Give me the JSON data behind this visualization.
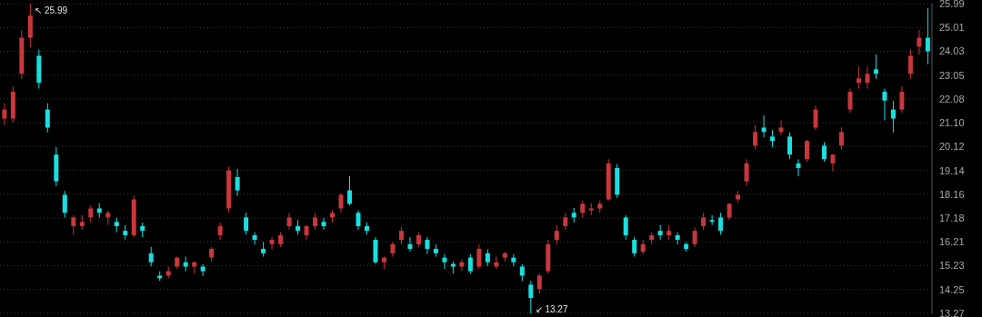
{
  "chart_data": {
    "type": "candlestick",
    "categories": [
      null,
      null,
      null,
      null,
      null,
      null,
      null,
      null,
      null,
      null,
      null,
      null,
      null,
      null,
      null,
      null,
      null,
      null,
      null,
      null,
      null,
      null,
      null,
      null,
      null,
      null,
      null,
      null,
      null,
      null,
      null,
      null,
      null,
      null,
      null,
      null,
      null,
      null,
      null,
      null,
      null,
      null,
      null,
      null,
      null,
      null,
      null,
      null,
      null,
      null,
      null,
      null,
      null,
      null,
      null,
      null,
      null,
      null,
      null,
      null,
      null,
      null,
      null,
      null,
      null,
      null,
      null,
      null,
      null,
      null,
      null,
      null,
      null,
      null,
      null,
      null,
      null,
      null,
      null,
      null,
      null,
      null,
      null,
      null,
      null,
      null,
      null,
      null,
      null,
      null,
      null,
      null,
      null,
      null,
      null,
      null,
      null,
      null,
      null,
      null,
      null,
      null,
      null,
      null,
      null,
      null,
      null,
      null
    ],
    "ohlc": [
      [
        21.27,
        21.9,
        21.0,
        21.64
      ],
      [
        21.27,
        22.6,
        21.1,
        22.37
      ],
      [
        23.11,
        24.9,
        22.9,
        24.59
      ],
      [
        24.59,
        25.99,
        24.2,
        25.5
      ],
      [
        23.85,
        24.1,
        22.5,
        22.74
      ],
      [
        21.64,
        21.9,
        20.7,
        20.9
      ],
      [
        19.79,
        20.1,
        18.5,
        18.69
      ],
      [
        18.14,
        18.3,
        17.2,
        17.4
      ],
      [
        16.85,
        17.3,
        16.5,
        17.21
      ],
      [
        16.85,
        17.3,
        16.7,
        17.03
      ],
      [
        17.21,
        17.7,
        17.0,
        17.58
      ],
      [
        17.58,
        17.8,
        17.2,
        17.4
      ],
      [
        17.21,
        17.5,
        16.9,
        17.4
      ],
      [
        17.03,
        17.2,
        16.6,
        16.85
      ],
      [
        16.66,
        16.9,
        16.3,
        16.48
      ],
      [
        16.48,
        18.1,
        16.4,
        17.95
      ],
      [
        16.85,
        17.0,
        16.4,
        16.66
      ],
      [
        15.74,
        16.0,
        15.2,
        15.37
      ],
      [
        14.82,
        15.0,
        14.6,
        14.71
      ],
      [
        14.82,
        15.2,
        14.7,
        15.0
      ],
      [
        15.19,
        15.6,
        15.1,
        15.56
      ],
      [
        15.37,
        15.6,
        15.0,
        15.19
      ],
      [
        15.19,
        15.4,
        14.9,
        15.37
      ],
      [
        15.19,
        15.3,
        14.8,
        15.0
      ],
      [
        15.56,
        16.0,
        15.4,
        15.92
      ],
      [
        16.48,
        17.0,
        16.3,
        16.85
      ],
      [
        17.58,
        19.3,
        17.4,
        19.14
      ],
      [
        18.87,
        19.2,
        18.1,
        18.32
      ],
      [
        17.21,
        17.4,
        16.5,
        16.66
      ],
      [
        16.48,
        16.6,
        16.1,
        16.29
      ],
      [
        15.92,
        16.2,
        15.6,
        15.74
      ],
      [
        16.11,
        16.4,
        15.9,
        16.29
      ],
      [
        16.11,
        16.6,
        16.0,
        16.48
      ],
      [
        16.85,
        17.4,
        16.7,
        17.21
      ],
      [
        16.85,
        17.1,
        16.5,
        16.66
      ],
      [
        16.48,
        16.9,
        16.3,
        16.85
      ],
      [
        16.85,
        17.4,
        16.7,
        17.21
      ],
      [
        17.03,
        17.2,
        16.7,
        16.85
      ],
      [
        17.21,
        17.5,
        17.0,
        17.4
      ],
      [
        17.58,
        18.2,
        17.4,
        18.14
      ],
      [
        18.32,
        18.9,
        17.7,
        17.77
      ],
      [
        17.4,
        17.5,
        16.7,
        16.85
      ],
      [
        16.85,
        17.0,
        16.5,
        16.66
      ],
      [
        16.29,
        16.4,
        15.3,
        15.37
      ],
      [
        15.37,
        15.6,
        15.1,
        15.56
      ],
      [
        15.74,
        16.2,
        15.6,
        16.11
      ],
      [
        16.29,
        16.8,
        16.1,
        16.66
      ],
      [
        16.11,
        16.4,
        15.8,
        15.92
      ],
      [
        16.11,
        16.6,
        16.0,
        16.48
      ],
      [
        16.29,
        16.4,
        15.7,
        15.92
      ],
      [
        15.92,
        16.1,
        15.6,
        15.74
      ],
      [
        15.56,
        15.7,
        15.1,
        15.37
      ],
      [
        15.3,
        15.4,
        14.9,
        15.19
      ],
      [
        15.19,
        15.5,
        15.0,
        15.37
      ],
      [
        15.56,
        15.7,
        14.9,
        15.0
      ],
      [
        15.19,
        16.1,
        15.1,
        15.92
      ],
      [
        15.74,
        15.9,
        15.2,
        15.37
      ],
      [
        15.19,
        15.6,
        15.1,
        15.37
      ],
      [
        15.56,
        15.8,
        15.4,
        15.74
      ],
      [
        15.56,
        15.7,
        15.2,
        15.37
      ],
      [
        15.19,
        15.3,
        14.6,
        14.82
      ],
      [
        14.45,
        14.6,
        13.27,
        13.9
      ],
      [
        14.27,
        14.9,
        14.1,
        14.82
      ],
      [
        15.0,
        16.3,
        14.9,
        16.11
      ],
      [
        16.29,
        16.9,
        16.1,
        16.66
      ],
      [
        16.85,
        17.4,
        16.7,
        17.21
      ],
      [
        17.4,
        17.6,
        17.0,
        17.21
      ],
      [
        17.4,
        17.9,
        17.2,
        17.77
      ],
      [
        17.5,
        17.8,
        17.3,
        17.58
      ],
      [
        17.58,
        17.9,
        17.4,
        17.77
      ],
      [
        17.95,
        19.6,
        17.9,
        19.43
      ],
      [
        19.24,
        19.4,
        18.0,
        18.14
      ],
      [
        17.21,
        17.3,
        16.3,
        16.48
      ],
      [
        16.29,
        16.4,
        15.6,
        15.74
      ],
      [
        15.8,
        16.3,
        15.7,
        16.11
      ],
      [
        16.29,
        16.6,
        16.1,
        16.48
      ],
      [
        16.66,
        16.9,
        16.3,
        16.48
      ],
      [
        16.48,
        16.9,
        16.3,
        16.66
      ],
      [
        16.48,
        16.6,
        16.1,
        16.29
      ],
      [
        16.11,
        16.2,
        15.8,
        15.92
      ],
      [
        16.11,
        16.8,
        16.0,
        16.66
      ],
      [
        16.85,
        17.4,
        16.7,
        17.21
      ],
      [
        17.1,
        17.3,
        16.9,
        17.03
      ],
      [
        17.21,
        17.4,
        16.5,
        16.66
      ],
      [
        17.21,
        17.8,
        17.1,
        17.77
      ],
      [
        17.95,
        18.3,
        17.8,
        18.14
      ],
      [
        18.69,
        19.6,
        18.5,
        19.43
      ],
      [
        20.16,
        21.0,
        20.0,
        20.72
      ],
      [
        20.9,
        21.4,
        20.5,
        20.72
      ],
      [
        20.53,
        20.8,
        20.1,
        20.35
      ],
      [
        20.72,
        21.2,
        20.6,
        20.9
      ],
      [
        20.53,
        20.7,
        19.6,
        19.79
      ],
      [
        19.43,
        19.6,
        18.9,
        19.24
      ],
      [
        19.61,
        20.4,
        19.5,
        20.35
      ],
      [
        20.9,
        21.8,
        20.8,
        21.64
      ],
      [
        20.16,
        20.3,
        19.5,
        19.61
      ],
      [
        19.43,
        19.8,
        19.1,
        19.79
      ],
      [
        20.16,
        20.9,
        20.0,
        20.72
      ],
      [
        21.64,
        22.5,
        21.5,
        22.37
      ],
      [
        22.74,
        23.4,
        22.5,
        22.92
      ],
      [
        22.74,
        23.4,
        22.5,
        23.11
      ],
      [
        23.29,
        23.9,
        22.9,
        23.11
      ],
      [
        22.37,
        22.5,
        21.2,
        22.01
      ],
      [
        21.64,
        22.0,
        20.7,
        21.27
      ],
      [
        21.64,
        22.6,
        21.5,
        22.37
      ],
      [
        23.11,
        24.1,
        22.9,
        23.85
      ],
      [
        24.22,
        24.9,
        23.9,
        24.59
      ],
      [
        24.59,
        25.8,
        23.5,
        24.03
      ]
    ],
    "colors": [
      "#c8373c",
      "#c8373c",
      "#c8373c",
      "#c8373c",
      "#18e0e0",
      "#18e0e0",
      "#18e0e0",
      "#18e0e0",
      "#c8373c",
      "#c8373c",
      "#c8373c",
      "#18e0e0",
      "#c8373c",
      "#18e0e0",
      "#18e0e0",
      "#c8373c",
      "#18e0e0",
      "#18e0e0",
      "#18e0e0",
      "#c8373c",
      "#c8373c",
      "#18e0e0",
      "#c8373c",
      "#18e0e0",
      "#c8373c",
      "#c8373c",
      "#c8373c",
      "#18e0e0",
      "#18e0e0",
      "#18e0e0",
      "#18e0e0",
      "#c8373c",
      "#c8373c",
      "#c8373c",
      "#18e0e0",
      "#c8373c",
      "#c8373c",
      "#18e0e0",
      "#c8373c",
      "#c8373c",
      "#18e0e0",
      "#18e0e0",
      "#18e0e0",
      "#18e0e0",
      "#c8373c",
      "#c8373c",
      "#c8373c",
      "#18e0e0",
      "#c8373c",
      "#18e0e0",
      "#18e0e0",
      "#18e0e0",
      "#18e0e0",
      "#c8373c",
      "#18e0e0",
      "#c8373c",
      "#18e0e0",
      "#c8373c",
      "#c8373c",
      "#18e0e0",
      "#18e0e0",
      "#18e0e0",
      "#c8373c",
      "#c8373c",
      "#c8373c",
      "#c8373c",
      "#18e0e0",
      "#c8373c",
      "#c8373c",
      "#c8373c",
      "#c8373c",
      "#18e0e0",
      "#18e0e0",
      "#18e0e0",
      "#c8373c",
      "#c8373c",
      "#18e0e0",
      "#c8373c",
      "#18e0e0",
      "#18e0e0",
      "#c8373c",
      "#c8373c",
      "#18e0e0",
      "#18e0e0",
      "#c8373c",
      "#c8373c",
      "#c8373c",
      "#c8373c",
      "#18e0e0",
      "#18e0e0",
      "#c8373c",
      "#18e0e0",
      "#18e0e0",
      "#c8373c",
      "#c8373c",
      "#18e0e0",
      "#c8373c",
      "#c8373c",
      "#c8373c",
      "#c8373c",
      "#c8373c",
      "#18e0e0",
      "#18e0e0",
      "#18e0e0",
      "#c8373c",
      "#c8373c",
      "#c8373c",
      "#18e0e0"
    ],
    "ylim": [
      13.27,
      25.99
    ],
    "yticks": [
      {
        "value": 13.27,
        "label": "13.27"
      },
      {
        "value": 14.25,
        "label": "14.25"
      },
      {
        "value": 15.23,
        "label": "15.23"
      },
      {
        "value": 16.21,
        "label": "16.21"
      },
      {
        "value": 17.18,
        "label": "17.18"
      },
      {
        "value": 18.16,
        "label": "18.16"
      },
      {
        "value": 19.14,
        "label": "19.14"
      },
      {
        "value": 20.12,
        "label": "20.12"
      },
      {
        "value": 21.1,
        "label": "21.10"
      },
      {
        "value": 22.08,
        "label": "22.08"
      },
      {
        "value": 23.05,
        "label": "23.05"
      },
      {
        "value": 24.03,
        "label": "24.03"
      },
      {
        "value": 25.01,
        "label": "25.01"
      },
      {
        "value": 25.99,
        "label": "25.99"
      }
    ],
    "grid": "y",
    "tick_labels": "y",
    "annotations": [
      "↖ 25.99",
      "↙ 13.27"
    ]
  }
}
